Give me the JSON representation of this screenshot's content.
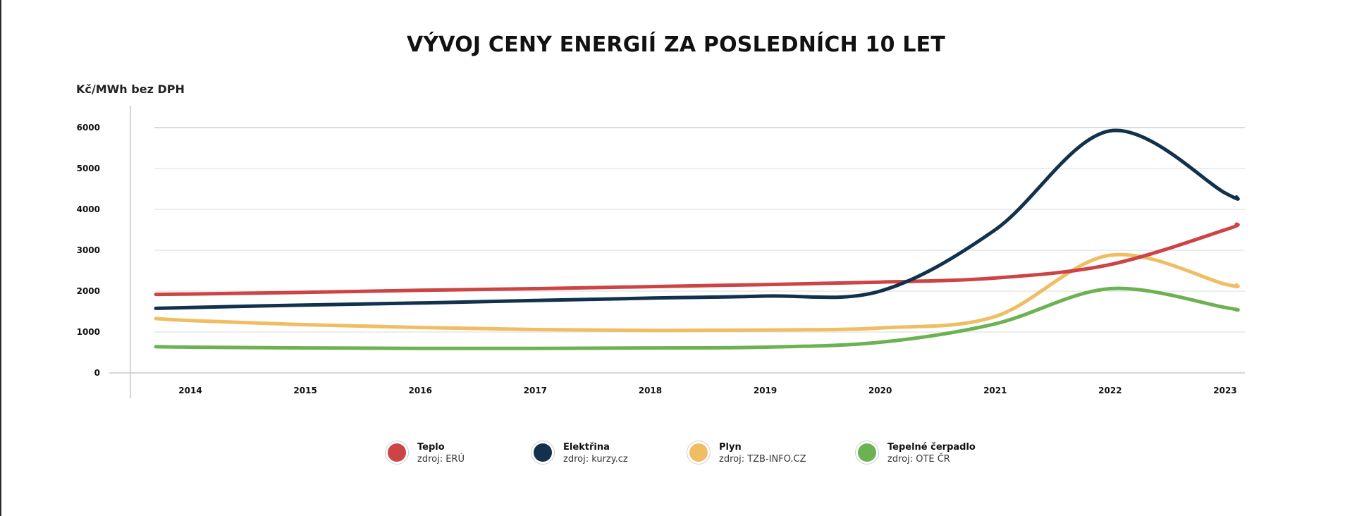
{
  "chart_data": {
    "type": "line",
    "title": "VÝVOJ CENY ENERGIÍ ZA POSLEDNÍCH 10 LET",
    "ylabel": "Kč/MWh bez DPH",
    "xlabel": "",
    "x": [
      2014,
      2015,
      2016,
      2017,
      2018,
      2019,
      2020,
      2021,
      2022,
      2023
    ],
    "x_tick_labels": [
      "2014",
      "2015",
      "2016",
      "2017",
      "2018",
      "2019",
      "2020",
      "2021",
      "2022",
      "2023"
    ],
    "y_ticks": [
      0,
      1000,
      2000,
      3000,
      4000,
      5000,
      6000
    ],
    "y_tick_labels": [
      "0",
      "1000",
      "2000",
      "3000",
      "4000",
      "5000",
      "6000"
    ],
    "ylim": [
      0,
      6000
    ],
    "xlim": [
      2013.7,
      2023.1
    ],
    "grid": "horizontal",
    "smooth": true,
    "legend_position": "bottom-center",
    "series": [
      {
        "name": "Teplo",
        "source": "zdroj:  ERÚ",
        "color": "#cc4444",
        "x": [
          2013.7,
          2014,
          2015,
          2016,
          2017,
          2018,
          2019,
          2020,
          2021,
          2022,
          2023,
          2023.1
        ],
        "values": [
          1920,
          1930,
          1970,
          2020,
          2060,
          2110,
          2160,
          2220,
          2320,
          2650,
          3500,
          3640
        ]
      },
      {
        "name": "Elektřina",
        "source": "zdroj: kurzy.cz",
        "color": "#12314d",
        "x": [
          2013.7,
          2014,
          2015,
          2016,
          2017,
          2018,
          2019,
          2020,
          2021,
          2022,
          2023,
          2023.1
        ],
        "values": [
          1580,
          1600,
          1660,
          1710,
          1770,
          1830,
          1880,
          2000,
          3500,
          5920,
          4400,
          4300
        ]
      },
      {
        "name": "Plyn",
        "source": "zdroj: TZB-INFO.CZ",
        "color": "#f0bd62",
        "x": [
          2013.7,
          2014,
          2015,
          2016,
          2017,
          2018,
          2019,
          2020,
          2021,
          2022,
          2023,
          2023.1
        ],
        "values": [
          1330,
          1280,
          1180,
          1110,
          1060,
          1040,
          1050,
          1100,
          1380,
          2880,
          2170,
          2150
        ]
      },
      {
        "name": "Tepelné čerpadlo",
        "source": "zdroj: OTE ČR",
        "color": "#6db252",
        "x": [
          2013.7,
          2014,
          2015,
          2016,
          2017,
          2018,
          2019,
          2020,
          2021,
          2022,
          2023,
          2023.1
        ],
        "values": [
          640,
          630,
          610,
          600,
          600,
          610,
          630,
          750,
          1200,
          2060,
          1600,
          1540
        ]
      }
    ]
  }
}
